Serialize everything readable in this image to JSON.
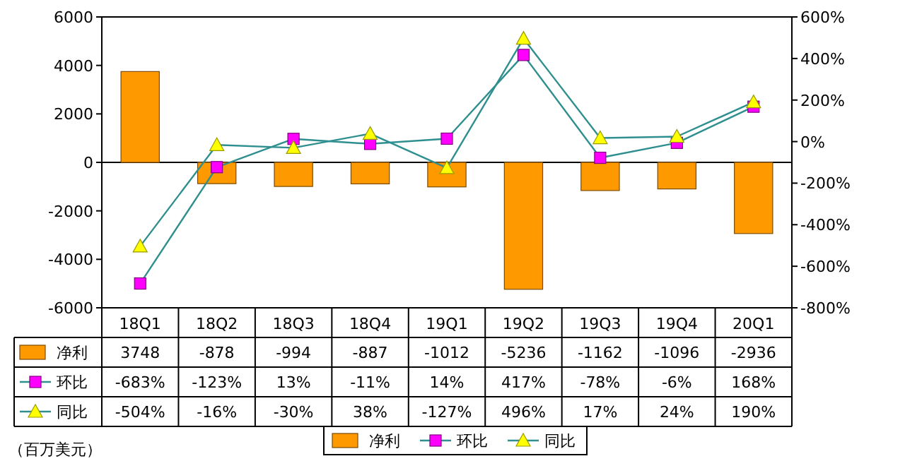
{
  "chart_data": {
    "type": "bar",
    "categories": [
      "18Q1",
      "18Q2",
      "18Q3",
      "18Q4",
      "19Q1",
      "19Q2",
      "19Q3",
      "19Q4",
      "20Q1"
    ],
    "series": [
      {
        "name": "净利",
        "color": "#ff9900",
        "values": [
          3748,
          -878,
          -994,
          -887,
          -1012,
          -5236,
          -1162,
          -1096,
          -2936
        ],
        "value_labels": [
          "3748",
          "-878",
          "-994",
          "-887",
          "-1012",
          "-5236",
          "-1162",
          "-1096",
          "-2936"
        ]
      },
      {
        "name": "环比",
        "type": "line",
        "axis": "y2",
        "marker": "square",
        "color": "#ff00ff",
        "values": [
          -683,
          -123,
          13,
          -11,
          14,
          417,
          -78,
          -6,
          168
        ],
        "value_labels": [
          "-683%",
          "-123%",
          "13%",
          "-11%",
          "14%",
          "417%",
          "-78%",
          "-6%",
          "168%"
        ]
      },
      {
        "name": "同比",
        "type": "line",
        "axis": "y2",
        "marker": "triangle",
        "color": "#ffff00",
        "values": [
          -504,
          -16,
          -30,
          38,
          -127,
          496,
          17,
          24,
          190
        ],
        "value_labels": [
          "-504%",
          "-16%",
          "-30%",
          "38%",
          "-127%",
          "496%",
          "17%",
          "24%",
          "190%"
        ]
      }
    ],
    "ylim": [
      -6000,
      6000
    ],
    "yticks": [
      -6000,
      -4000,
      -2000,
      0,
      2000,
      4000,
      6000
    ],
    "y2lim": [
      -800,
      600
    ],
    "y2ticks": [
      {
        "value": -800,
        "label": "-800%"
      },
      {
        "value": -600,
        "label": "-600%"
      },
      {
        "value": -400,
        "label": "-400%"
      },
      {
        "value": -200,
        "label": "-200%"
      },
      {
        "value": 0,
        "label": "0%"
      },
      {
        "value": 200,
        "label": "200%"
      },
      {
        "value": 400,
        "label": "400%"
      },
      {
        "value": 600,
        "label": "600%"
      }
    ],
    "legend": "bottom",
    "annotations": [
      "（百万美元）"
    ]
  }
}
